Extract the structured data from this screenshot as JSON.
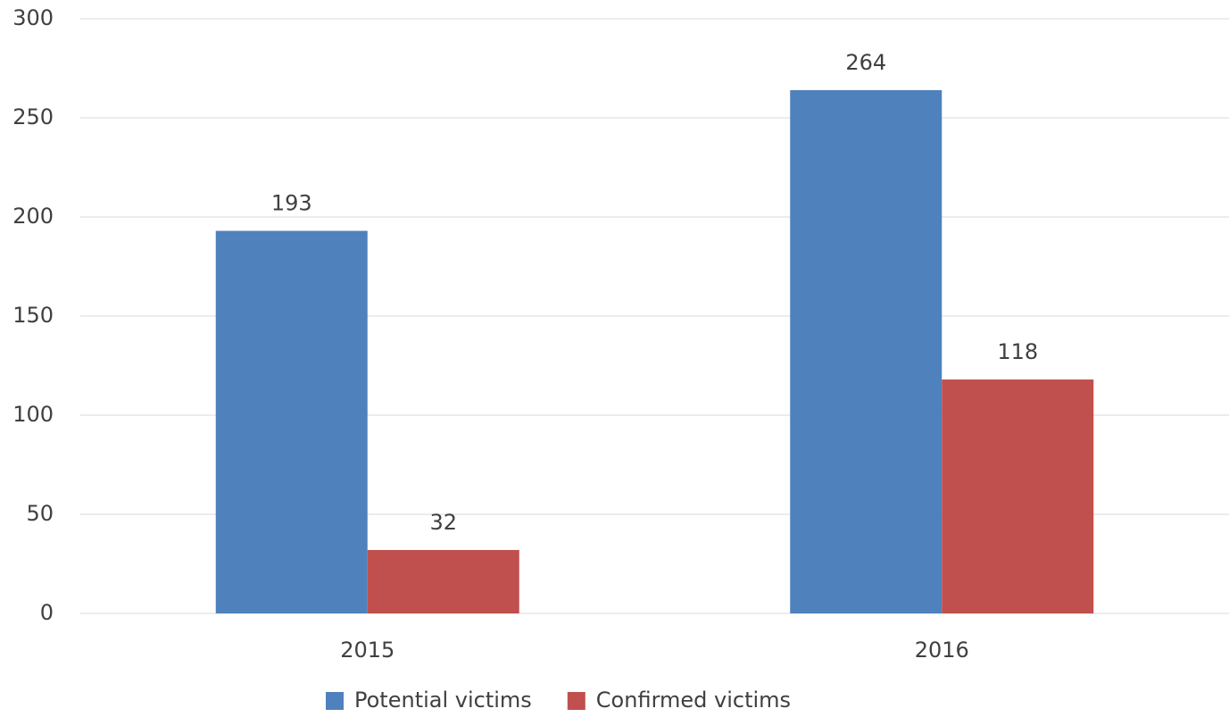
{
  "chart_data": {
    "type": "bar",
    "categories": [
      "2015",
      "2016"
    ],
    "series": [
      {
        "name": "Potential victims",
        "color": "#4f81bd",
        "values": [
          193,
          264
        ]
      },
      {
        "name": "Confirmed victims",
        "color": "#c0504d",
        "values": [
          32,
          118
        ]
      }
    ],
    "ylim": [
      0,
      300
    ],
    "yticks": [
      0,
      50,
      100,
      150,
      200,
      250,
      300
    ],
    "grid": true,
    "legend": "bottom"
  }
}
